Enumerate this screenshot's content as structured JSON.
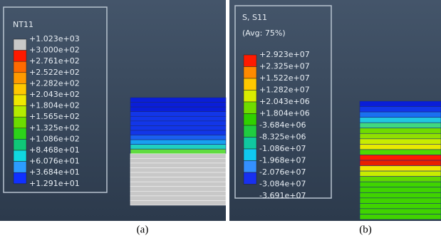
{
  "panels": [
    {
      "legend_title": "NT11",
      "legend_labels": [
        "+1.023e+03",
        "+3.000e+02",
        "+2.761e+02",
        "+2.522e+02",
        "+2.282e+02",
        "+2.043e+02",
        "+1.804e+02",
        "+1.565e+02",
        "+1.325e+02",
        "+1.086e+02",
        "+8.468e+01",
        "+6.076e+01",
        "+3.684e+01",
        "+1.291e+01"
      ],
      "caption": "(a)"
    },
    {
      "legend_title": "S, S11",
      "legend_subtitle": "(Avg: 75%)",
      "legend_labels": [
        "+2.923e+07",
        "+2.325e+07",
        "+1.522e+07",
        "+1.282e+07",
        "+2.043e+06",
        "+1.804e+06",
        "-3.684e+06",
        "-8.325e+06",
        "-1.086e+07",
        "-1.968e+07",
        "-2.076e+07",
        "-3.084e+07",
        "-3.691e+07"
      ],
      "caption": "(b)"
    }
  ]
}
